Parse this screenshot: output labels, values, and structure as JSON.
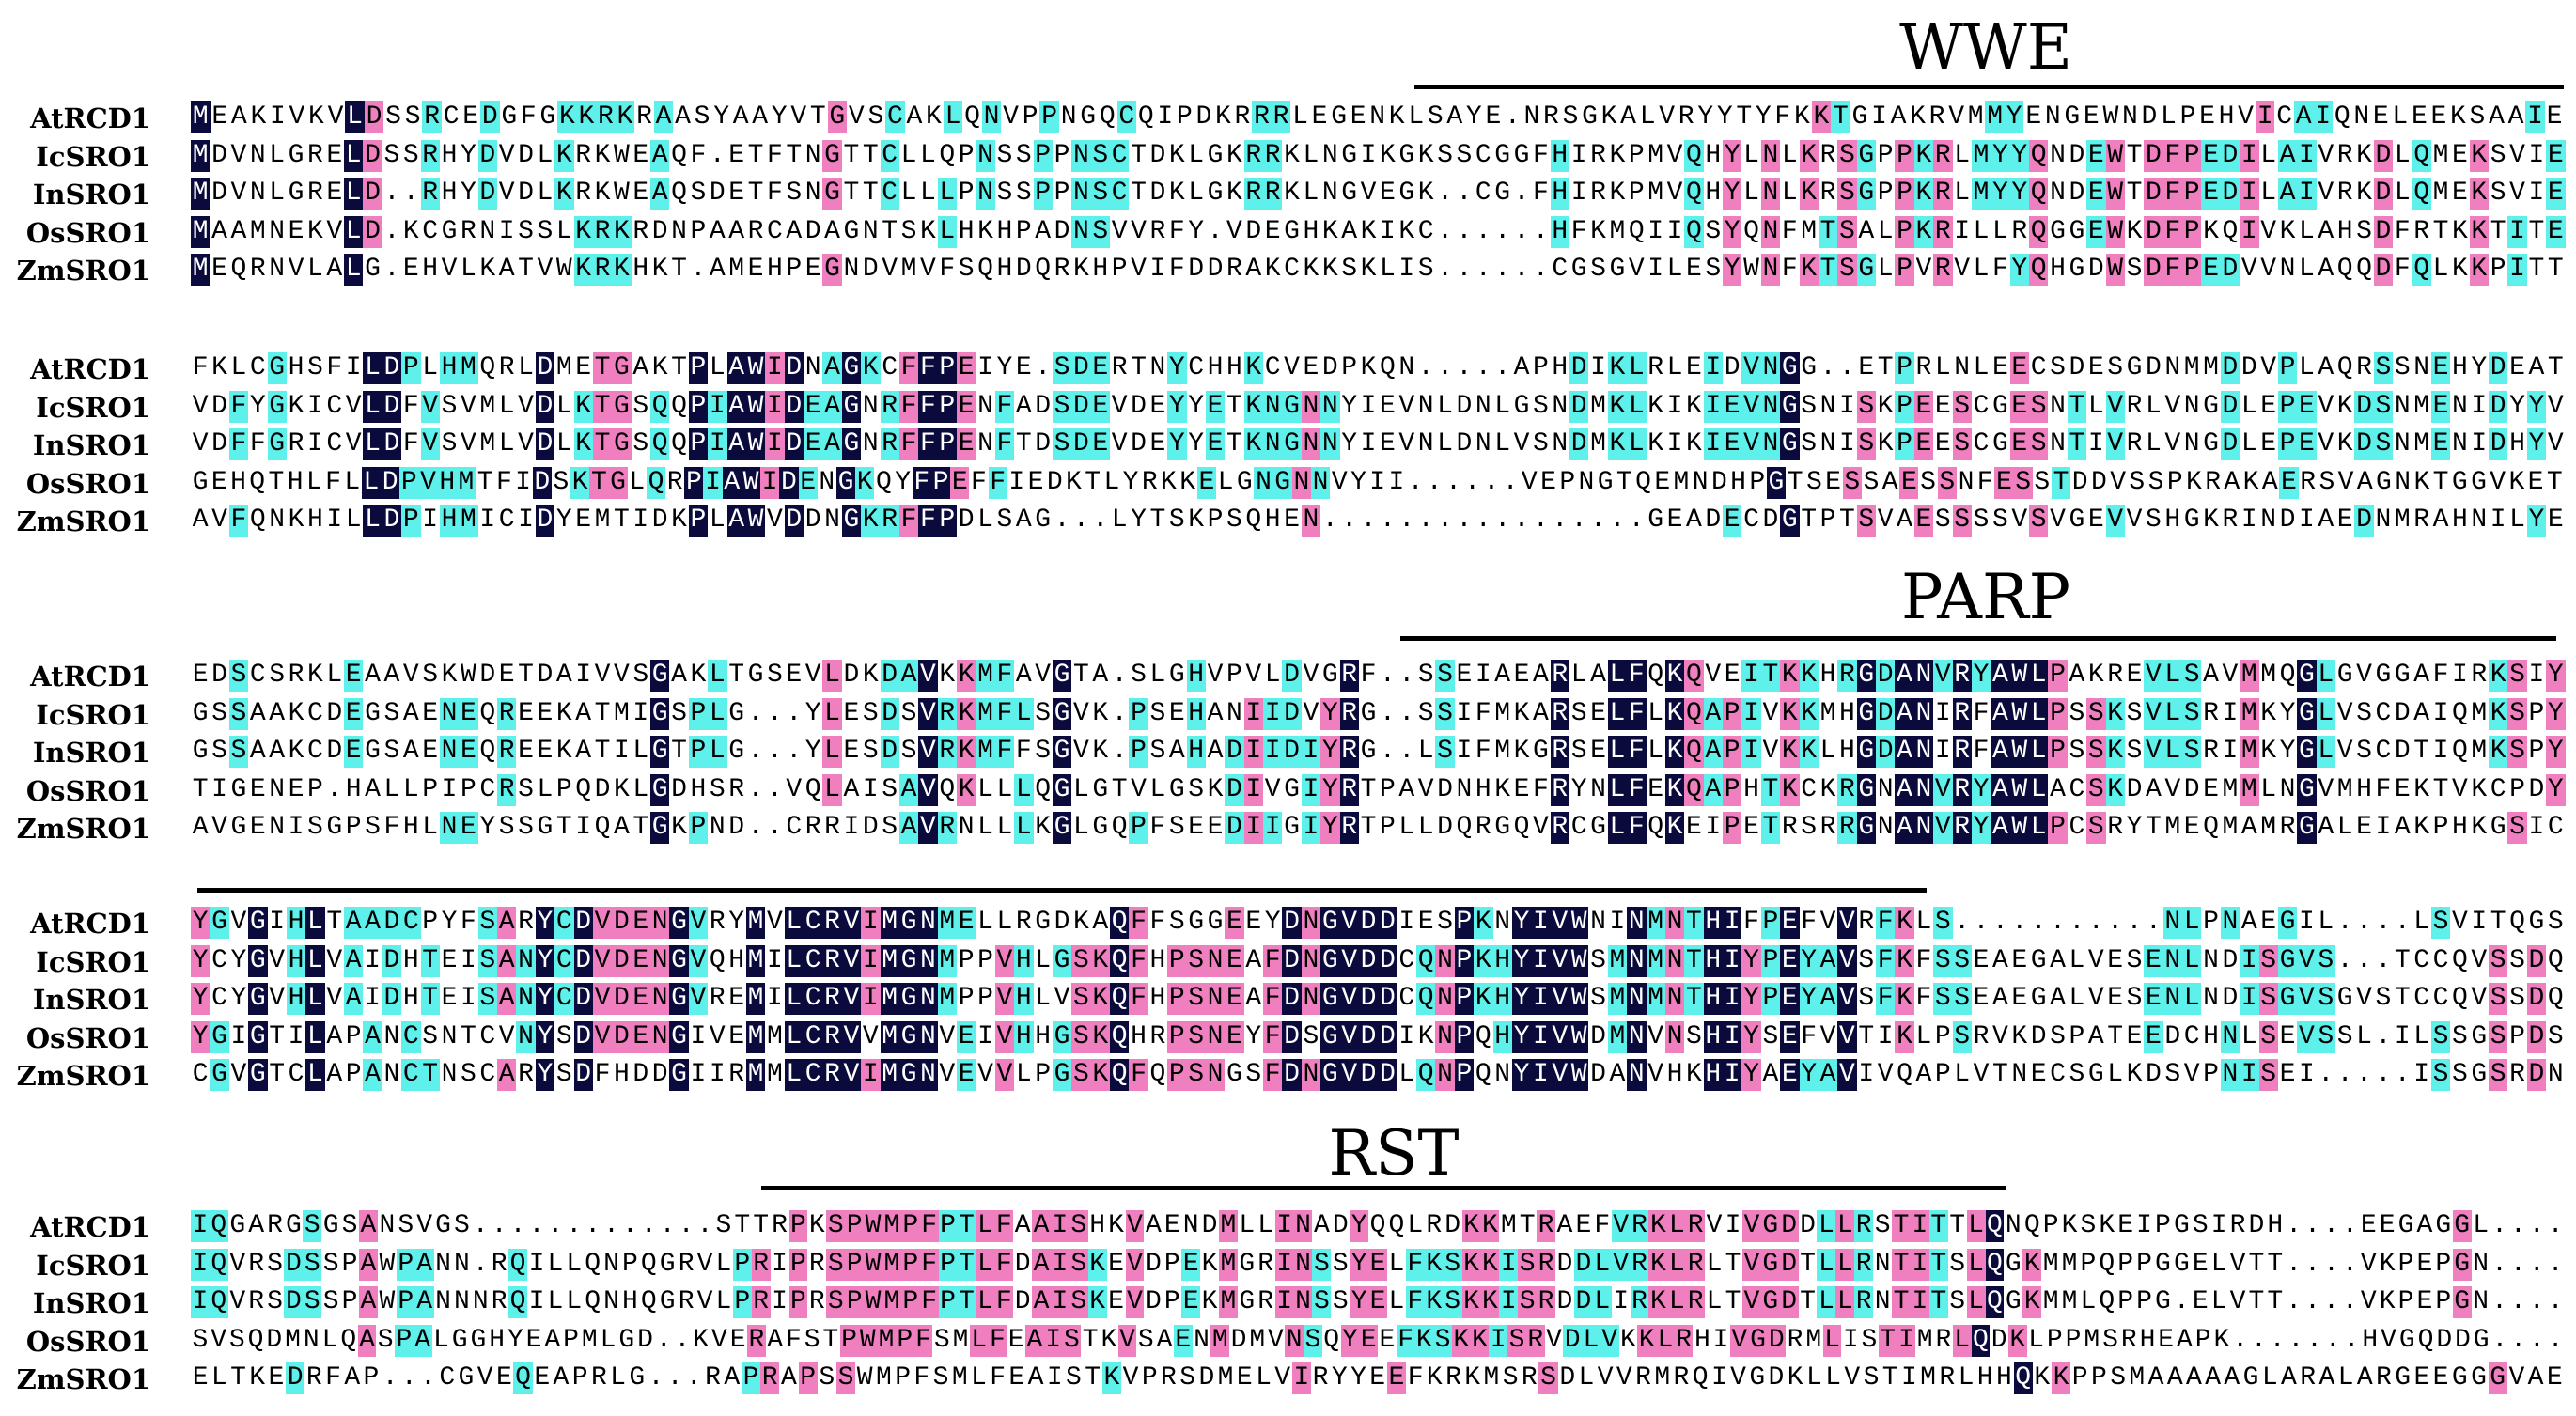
{
  "blocks": [
    {
      "domain": "WWE",
      "rows": [
        {
          "name": "AtRCD1",
          "seq": "MEAKIVKVLDSSRCEDGFGKKRKRAASYAAYVTGVSCAKLQNVPPNGQCQIPDKRRRLEGENKLSAYE.NRSGKALVRYYTYFKKTGIAKRVMMYENGEWNDLPEHVICAIQNELEEKSAAIE"
        },
        {
          "name": "IcSRO1",
          "seq": "MDVNLGRELDSSRHYDVDLKRKWEAQF.ETFTNGTTCLLQPNSSPPNSCTDKLGKRRKLNGIKGKSSCGGFHIRKPMVQHYLNLKRSGPPKRLMYYQNDEWTDFPEDILAIVRKDLQMEKSVIE"
        },
        {
          "name": "InSRO1",
          "seq": "MDVNLGRELD..RHYDVDLKRKWEAQSDETFSNGTTCLLLPNSSPPNSCTDKLGKRRKLNGVEGK..CG.FHIRKPMVQHYLNLKRSGPPKRLMYYQNDEWTDFPEDILAIVRKDLQMEKSVIE"
        },
        {
          "name": "OsSRO1",
          "seq": "MAAMNEKVLD.KCGRNISSLKRKRDNPAARCADAGNTSKLHKHPADNSVVRFY.VDEGHKAKIKC......HFKMQIIQSYQNFMTSALPKRILLRQGGEWKDFPKQIVKLAHSDFRTKKTITE"
        },
        {
          "name": "ZmSRO1",
          "seq": "MEQRNVLALG.EHVLKATVWKRKHKT.AMEHPEGNDVMVFSQHDQRKHPVIFDDRAKCKKSKLIS......CGSGVILESYWNFKTSGLPVRVLFYQHGDWSDFPEDVVNLAQQDFQLKKPITT"
        }
      ]
    },
    {
      "domain": "",
      "rows": [
        {
          "name": "AtRCD1",
          "seq": "FKLCGHSFILDPLHMQRLDMETGAKTPLAWIDNAGKCFFPEIYE.SDERTNYCHHKCVEDPKQN.....APHDIKLRLEIDVNGG..ETPRLNLEECSDESGDNMMDDVPLAQRSSNEHYDEAT"
        },
        {
          "name": "IcSRO1",
          "seq": "VDFYGKICVLDFVSVMLVDLKTGSQQPIAWIDEAGNRFFPENFADSDEVDEYYETKNGNNYIEVNLDNLGSNDMKLKIKIEVNGSNISKPEESCGESNTLVRLVNGDLEPEVKDSNMENIDYYV"
        },
        {
          "name": "InSRO1",
          "seq": "VDFFGRICVLDFVSVMLVDLKTGSQQPIAWIDEAGNRFFPENFTDSDEVDEYYETKNGNNYIEVNLDNLVSNDMKLKIKIEVNGSNISKPEESCGESNTIVRLVNGDLEPEVKDSNMENIDHYV"
        },
        {
          "name": "OsSRO1",
          "seq": "GEHQTHLFLLDPVHMTFIDSKTGLQRPIAWIDENGKQYFPEFFIEDKTLYRKKELGNGNNVYII......VEPNGTQEMNDHPGTSESSAESSNFESSTDDVSSPKRAKAERSVAGNKTGGVKET"
        },
        {
          "name": "ZmSRO1",
          "seq": "AVFQNKHILLDPIHMICIDYEMTIDKPLAWVDDNGKRFFPDLSAG...LYTSKPSQHEN.................GEADECDGTPTSVAESSSSVSVGEVVSHGKRINDIAEDNMRAHNILYE"
        }
      ]
    },
    {
      "domain": "PARP",
      "rows": [
        {
          "name": "AtRCD1",
          "seq": "EDSCSRKLEAAVSKWDETDAIVVSGAKLTGSEVLDKDAVKKMFAVGTA.SLGHVPVLDVGRF..SSEIAEARLALFQKQVEITKKHRGDANVRYAWLPAKREVLSAVMMQGLGVGGAFIRKSIY"
        },
        {
          "name": "IcSRO1",
          "seq": "GSSAAKCDEGSAENEQREEKATMIGSPLG...YLESDSVRKMFLSGVK.PSEHANIIDVYRG..SSIFMKARSELFLKQAPIVKKMHGDANIRFAWLPSSKSVLSRIMKYGLVSCDAIQMKSPY"
        },
        {
          "name": "InSRO1",
          "seq": "GSSAAKCDEGSAENEQREEKATILGTPLG...YLESDSVRKMFFSGVK.PSAHADIIDIYRG..LSIFMKGRSELFLKQAPIVKKLHGDANIRFAWLPSSKSVLSRIMKYGLVSCDTIQMKSPY"
        },
        {
          "name": "OsSRO1",
          "seq": "TIGENEP.HALLPIPCRSLPQDKLGDHSR..VQLAISAVQKLLLQGLGTVLGSKDIVGIYRTPAVDNHKEFRYNLFEKQAPHTKCKRGNANVRYAWLACSKDAVDEMMLNGVMHFEKTVKCPDY"
        },
        {
          "name": "ZmSRO1",
          "seq": "AVGENISGPSFHLNEYSSGTIQATGKPND..CRRIDSAVRNLLLKGLGQPFSEEDIIGIYRTPLLDQRGQVRCGLFQKEIPETRSRRGNANVRYAWLPCSRYTMEQMAMRGALEIAKPHKGSIC"
        }
      ]
    },
    {
      "domain": "",
      "rows": [
        {
          "name": "AtRCD1",
          "seq": "YGVGIHLTAADCPYFSARYCDVDENGVRYMVLCRVIMGNMELLRGDKAQFFSGGEEYDNGVDDIESPKNYIVWNINMNTHIFPEFVVRFKLS...........NLPNAEGIL....LSVITQGS"
        },
        {
          "name": "IcSRO1",
          "seq": "YCYGVHLVAIDHTEISANYCDVDENGVQHMILCRVIMGNMPPVHLGSKQFHPSNEAFDNGVDDCQNPKHYIVWSMNMNTHIYPEYAVSFKFSSEAEGALVESENLNDISGVS...TCCQVSSDQ"
        },
        {
          "name": "InSRO1",
          "seq": "YCYGVHLVAIDHTEISANYCDVDENGVREMILCRVIMGNMPPVHLVSKQFHPSNEAFDNGVDDCQNPKHYIVWSMNMNTHIYPEYAVSFKFSSEAEGALVESENLNDISGVSGVSTCCQVSSDQ"
        },
        {
          "name": "OsSRO1",
          "seq": "YGIGTILAPANCSNTCVNYSDVDENGIVEMMLCRVVMGNVEIVHHGSKQHRPSNEYFDSGVDDIKNPQHYIVWDMNVNSHIYSEFVVTIKLPSRVKDSPATEEDCHNLSEVSSL.ILSSGSPDS"
        },
        {
          "name": "ZmSRO1",
          "seq": "CGVGTCLAPANCTNSCARYSDFHDDGIIRMMLCRVIMGNVEVVLPGSKQFQPSNGSFDNGVDDLQNPQNYIVWDANVHKHIYAEYAVIVQAPLVTNECSGLKDSVPNISEI.....ISSGSRDN"
        }
      ]
    },
    {
      "domain": "RST",
      "rows": [
        {
          "name": "AtRCD1",
          "seq": "IQGARGSGSANSVGS.............STTRPKSPWMPFPTLFAAISHKVAENDMLLINADYQQLRDKKMTRAEFVRKLRVIVGDDLLRSTITTLQNQPKSKEIPGSIRDH....EEGAGGL...."
        },
        {
          "name": "IcSRO1",
          "seq": "IQVRSDSSPAWPANN.RQILLQNPQGRVLPRIPRSPWMPFPTLFDAISKEVDPEKMGRINSSYELFKSKKISRDDLVRKLRLTVGDTLLRNTITSLQGKMMPQPPGGELVTT....VKPEPGN...."
        },
        {
          "name": "InSRO1",
          "seq": "IQVRSDSSPAWPANNNRQILLQNHQGRVLPRIPRSPWMPFPTLFDAISKEVDPEKMGRINSSYELFKSKKISRDDLIRKLRLTVGDTLLRNTITSLQGKMMLQPPG.ELVTT....VKPEPGN...."
        },
        {
          "name": "OsSRO1",
          "seq": "SVSQDMNLQASPALGGHYEAPMLGD..KVERAFSTPWMPFSMLFEAISTKVSAENMDMVNSQYEEFKSKKISRVDLVKKLRHIVGDRMLISTIMRLQDKLPPMSRHEAPK.......HVGQDDG...."
        },
        {
          "name": "ZmSRO1",
          "seq": "ELTKEDRFAP...CGVEQEAPRLG...RAPRAPSSWMPFSMLFEAISTKVPRSDMELVIRYYEEFKRKMSRSDLVVRMRQIVGDKLLVSTIMRLHHQKKPPSMAAAAAGLARALARGEEGGGVAE"
        }
      ]
    }
  ]
}
